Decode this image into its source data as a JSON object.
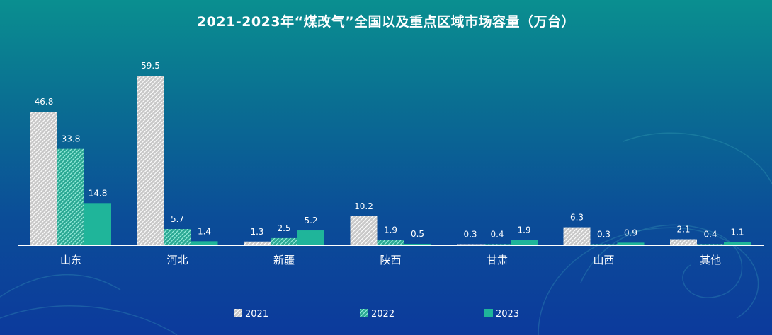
{
  "colors": {
    "s2021": "#ffffff",
    "s2022": "#5fe0c8",
    "s2023": "#1fb59a",
    "axis": "#ffffff"
  },
  "chart_data": {
    "type": "bar",
    "title": "2021-2023年“煤改气”全国以及重点区域市场容量（万台）",
    "categories": [
      "山东",
      "河北",
      "新疆",
      "陕西",
      "甘肃",
      "山西",
      "其他"
    ],
    "series": [
      {
        "name": "2021",
        "values": [
          46.8,
          59.5,
          1.3,
          10.2,
          0.3,
          6.3,
          2.1
        ]
      },
      {
        "name": "2022",
        "values": [
          33.8,
          5.7,
          2.5,
          1.9,
          0.4,
          0.3,
          0.4
        ]
      },
      {
        "name": "2023",
        "values": [
          14.8,
          1.4,
          5.2,
          0.5,
          1.9,
          0.9,
          1.1
        ]
      }
    ],
    "ylim": [
      0,
      60
    ],
    "legend_position": "bottom",
    "grid": false
  }
}
